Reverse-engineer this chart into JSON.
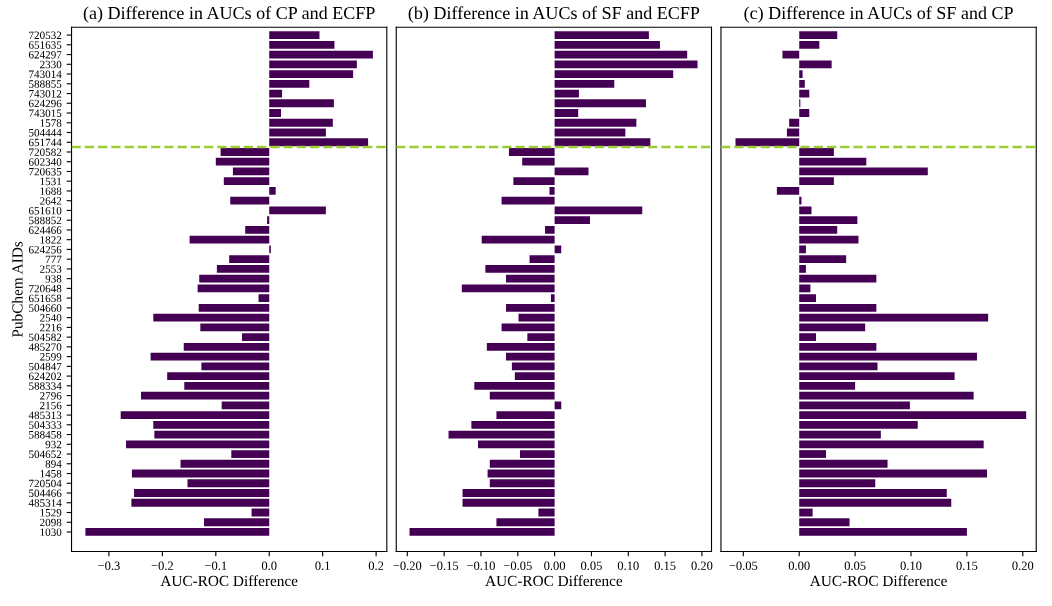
{
  "chart_data": [
    {
      "type": "bar",
      "orientation": "horizontal",
      "title": "(a) Difference in AUCs of CP and ECFP",
      "xlabel": "AUC-ROC Difference",
      "ylabel": "PubChem AIDs",
      "color": "#440154",
      "categories": [
        "720532",
        "651635",
        "624297",
        "2330",
        "743014",
        "588855",
        "743012",
        "624296",
        "743015",
        "1578",
        "504444",
        "651744",
        "720582",
        "602340",
        "720635",
        "1531",
        "1688",
        "2642",
        "651610",
        "588852",
        "624466",
        "1822",
        "624256",
        "777",
        "2553",
        "938",
        "720648",
        "651658",
        "504660",
        "2540",
        "2216",
        "504582",
        "485270",
        "2599",
        "504847",
        "624202",
        "588334",
        "2796",
        "2156",
        "485313",
        "504333",
        "588458",
        "932",
        "504652",
        "894",
        "1458",
        "720504",
        "504466",
        "485314",
        "1529",
        "2098",
        "1030"
      ],
      "values": [
        0.094,
        0.122,
        0.194,
        0.164,
        0.157,
        0.075,
        0.024,
        0.121,
        0.022,
        0.119,
        0.106,
        0.185,
        -0.091,
        -0.1,
        -0.068,
        -0.085,
        0.012,
        -0.073,
        0.106,
        -0.004,
        -0.045,
        -0.149,
        0.003,
        -0.075,
        -0.098,
        -0.131,
        -0.134,
        -0.02,
        -0.132,
        -0.217,
        -0.129,
        -0.051,
        -0.16,
        -0.222,
        -0.127,
        -0.191,
        -0.159,
        -0.24,
        -0.089,
        -0.278,
        -0.217,
        -0.215,
        -0.268,
        -0.071,
        -0.166,
        -0.257,
        -0.153,
        -0.253,
        -0.258,
        -0.033,
        -0.122,
        -0.344
      ],
      "xlim": [
        -0.37,
        0.22
      ],
      "xticks": [
        {
          "value": -0.3,
          "label": "−0.3"
        },
        {
          "value": -0.2,
          "label": "−0.2"
        },
        {
          "value": -0.1,
          "label": "−0.1"
        },
        {
          "value": 0.0,
          "label": "0.0"
        },
        {
          "value": 0.1,
          "label": "0.1"
        },
        {
          "value": 0.2,
          "label": "0.2"
        }
      ],
      "ref_lines": [
        {
          "axis": "y",
          "value": "720582",
          "color": "#9acd32",
          "line_style": "dashed"
        }
      ],
      "grid": false
    },
    {
      "type": "bar",
      "orientation": "horizontal",
      "title": "(b) Difference in AUCs of SF and ECFP",
      "xlabel": "AUC-ROC Difference",
      "color": "#440154",
      "tick_labels": "x",
      "categories": [
        "720532",
        "651635",
        "624297",
        "2330",
        "743014",
        "588855",
        "743012",
        "624296",
        "743015",
        "1578",
        "504444",
        "651744",
        "720582",
        "602340",
        "720635",
        "1531",
        "1688",
        "2642",
        "651610",
        "588852",
        "624466",
        "1822",
        "624256",
        "777",
        "2553",
        "938",
        "720648",
        "651658",
        "504660",
        "2540",
        "2216",
        "504582",
        "485270",
        "2599",
        "504847",
        "624202",
        "588334",
        "2796",
        "2156",
        "485313",
        "504333",
        "588458",
        "932",
        "504652",
        "894",
        "1458",
        "720504",
        "504466",
        "485314",
        "1529",
        "2098",
        "1030"
      ],
      "values": [
        0.128,
        0.143,
        0.18,
        0.194,
        0.161,
        0.081,
        0.033,
        0.124,
        0.032,
        0.111,
        0.096,
        0.13,
        -0.062,
        -0.044,
        0.046,
        -0.056,
        -0.007,
        -0.072,
        0.119,
        0.048,
        -0.013,
        -0.099,
        0.009,
        -0.034,
        -0.094,
        -0.066,
        -0.126,
        -0.005,
        -0.066,
        -0.049,
        -0.072,
        -0.037,
        -0.092,
        -0.066,
        -0.058,
        -0.054,
        -0.109,
        -0.088,
        0.009,
        -0.079,
        -0.113,
        -0.144,
        -0.104,
        -0.047,
        -0.088,
        -0.091,
        -0.088,
        -0.125,
        -0.125,
        -0.022,
        -0.079,
        -0.197
      ],
      "xlim": [
        -0.215,
        0.213
      ],
      "xticks": [
        {
          "value": -0.2,
          "label": "−0.20"
        },
        {
          "value": -0.15,
          "label": "−0.15"
        },
        {
          "value": -0.1,
          "label": "−0.10"
        },
        {
          "value": -0.05,
          "label": "−0.05"
        },
        {
          "value": 0.0,
          "label": "0.00"
        },
        {
          "value": 0.05,
          "label": "0.05"
        },
        {
          "value": 0.1,
          "label": "0.10"
        },
        {
          "value": 0.15,
          "label": "0.15"
        },
        {
          "value": 0.2,
          "label": "0.20"
        }
      ],
      "ref_lines": [
        {
          "axis": "y",
          "value": "720582",
          "color": "#9acd32",
          "line_style": "dashed"
        }
      ],
      "grid": false
    },
    {
      "type": "bar",
      "orientation": "horizontal",
      "title": "(c) Difference in AUCs of SF and CP",
      "xlabel": "AUC-ROC Difference",
      "color": "#440154",
      "tick_labels": "x",
      "categories": [
        "720532",
        "651635",
        "624297",
        "2330",
        "743014",
        "588855",
        "743012",
        "624296",
        "743015",
        "1578",
        "504444",
        "651744",
        "720582",
        "602340",
        "720635",
        "1531",
        "1688",
        "2642",
        "651610",
        "588852",
        "624466",
        "1822",
        "624256",
        "777",
        "2553",
        "938",
        "720648",
        "651658",
        "504660",
        "2540",
        "2216",
        "504582",
        "485270",
        "2599",
        "504847",
        "624202",
        "588334",
        "2796",
        "2156",
        "485313",
        "504333",
        "588458",
        "932",
        "504652",
        "894",
        "1458",
        "720504",
        "504466",
        "485314",
        "1529",
        "2098",
        "1030"
      ],
      "values": [
        0.034,
        0.018,
        -0.015,
        0.029,
        0.003,
        0.005,
        0.009,
        0.001,
        0.009,
        -0.009,
        -0.011,
        -0.057,
        0.031,
        0.06,
        0.115,
        0.031,
        -0.02,
        0.002,
        0.011,
        0.052,
        0.034,
        0.053,
        0.006,
        0.042,
        0.006,
        0.069,
        0.01,
        0.015,
        0.069,
        0.169,
        0.059,
        0.015,
        0.069,
        0.159,
        0.07,
        0.139,
        0.05,
        0.156,
        0.099,
        0.203,
        0.106,
        0.073,
        0.165,
        0.024,
        0.079,
        0.168,
        0.068,
        0.132,
        0.136,
        0.012,
        0.045,
        0.15
      ],
      "xlim": [
        -0.07,
        0.212
      ],
      "xticks": [
        {
          "value": -0.05,
          "label": "−0.05"
        },
        {
          "value": 0.0,
          "label": "0.00"
        },
        {
          "value": 0.05,
          "label": "0.05"
        },
        {
          "value": 0.1,
          "label": "0.10"
        },
        {
          "value": 0.15,
          "label": "0.15"
        },
        {
          "value": 0.2,
          "label": "0.20"
        }
      ],
      "ref_lines": [
        {
          "axis": "y",
          "value": "720582",
          "color": "#9acd32",
          "line_style": "dashed"
        }
      ],
      "grid": false
    }
  ]
}
